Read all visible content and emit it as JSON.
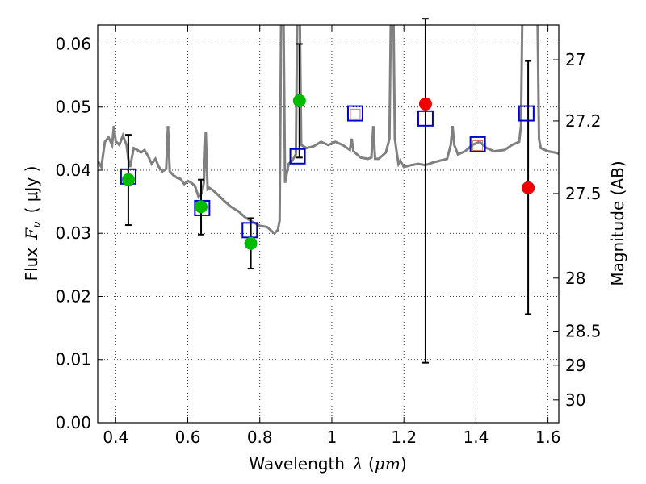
{
  "chart_data": {
    "type": "scatter",
    "xlabel_text": "Wavelength",
    "xlabel_symbol": "λ",
    "xlabel_unit_open": " (",
    "xlabel_unit": "μm",
    "xlabel_unit_close": ")",
    "ylabel_text": "Flux",
    "ylabel_symbol": "F",
    "ylabel_sub": "ν",
    "ylabel_unit": "( μJy )",
    "y2label": "Magnitude (AB)",
    "xlim": [
      0.35,
      1.63
    ],
    "ylim": [
      0.0,
      0.063
    ],
    "grid": true,
    "x_ticks": [
      0.4,
      0.6,
      0.8,
      1.0,
      1.2,
      1.4,
      1.6
    ],
    "x_tick_labels": [
      "0.4",
      "0.6",
      "0.8",
      "1",
      "1.2",
      "1.4",
      "1.6"
    ],
    "y_ticks": [
      0.0,
      0.01,
      0.02,
      0.03,
      0.04,
      0.05,
      0.06
    ],
    "y_tick_labels": [
      "0.00",
      "0.01",
      "0.02",
      "0.03",
      "0.04",
      "0.05",
      "0.06"
    ],
    "y2_ticks": [
      {
        "label": "27",
        "flux": 0.0575
      },
      {
        "label": "27.2",
        "flux": 0.0478
      },
      {
        "label": "27.5",
        "flux": 0.0363
      },
      {
        "label": "28",
        "flux": 0.0229
      },
      {
        "label": "28.5",
        "flux": 0.0145
      },
      {
        "label": "29",
        "flux": 0.0091
      },
      {
        "label": "30",
        "flux": 0.0036
      }
    ],
    "colors": {
      "model": "#808080",
      "model_flux": "#0000cc",
      "detection": "#00bb00",
      "non_detection": "#ee0000",
      "error_bar": "#000000",
      "inner_box": "#ee6666"
    },
    "series": [
      {
        "kind": "model-spectrum",
        "points": [
          [
            0.35,
            0.0415
          ],
          [
            0.36,
            0.0405
          ],
          [
            0.37,
            0.0445
          ],
          [
            0.38,
            0.0452
          ],
          [
            0.39,
            0.044
          ],
          [
            0.395,
            0.047
          ],
          [
            0.4,
            0.0446
          ],
          [
            0.41,
            0.044
          ],
          [
            0.42,
            0.0455
          ],
          [
            0.43,
            0.044
          ],
          [
            0.435,
            0.0418
          ],
          [
            0.44,
            0.0405
          ],
          [
            0.45,
            0.0435
          ],
          [
            0.46,
            0.0432
          ],
          [
            0.47,
            0.0428
          ],
          [
            0.48,
            0.0432
          ],
          [
            0.49,
            0.0422
          ],
          [
            0.5,
            0.041
          ],
          [
            0.51,
            0.0418
          ],
          [
            0.52,
            0.0405
          ],
          [
            0.53,
            0.0398
          ],
          [
            0.54,
            0.0402
          ],
          [
            0.545,
            0.047
          ],
          [
            0.55,
            0.0398
          ],
          [
            0.56,
            0.0392
          ],
          [
            0.57,
            0.0388
          ],
          [
            0.58,
            0.0386
          ],
          [
            0.59,
            0.0378
          ],
          [
            0.6,
            0.0383
          ],
          [
            0.61,
            0.038
          ],
          [
            0.62,
            0.0375
          ],
          [
            0.63,
            0.0358
          ],
          [
            0.64,
            0.0365
          ],
          [
            0.645,
            0.0382
          ],
          [
            0.65,
            0.046
          ],
          [
            0.655,
            0.037
          ],
          [
            0.66,
            0.0372
          ],
          [
            0.67,
            0.0368
          ],
          [
            0.68,
            0.0363
          ],
          [
            0.7,
            0.0352
          ],
          [
            0.72,
            0.0342
          ],
          [
            0.74,
            0.0335
          ],
          [
            0.76,
            0.0325
          ],
          [
            0.78,
            0.0318
          ],
          [
            0.8,
            0.0312
          ],
          [
            0.82,
            0.031
          ],
          [
            0.84,
            0.03
          ],
          [
            0.85,
            0.0305
          ],
          [
            0.855,
            0.032
          ],
          [
            0.86,
            0.07
          ],
          [
            0.865,
            0.07
          ],
          [
            0.87,
            0.038
          ],
          [
            0.88,
            0.041
          ],
          [
            0.89,
            0.0415
          ],
          [
            0.9,
            0.0425
          ],
          [
            0.905,
            0.07
          ],
          [
            0.91,
            0.07
          ],
          [
            0.915,
            0.044
          ],
          [
            0.93,
            0.0435
          ],
          [
            0.95,
            0.0438
          ],
          [
            0.97,
            0.0445
          ],
          [
            0.99,
            0.044
          ],
          [
            1.01,
            0.0445
          ],
          [
            1.03,
            0.044
          ],
          [
            1.05,
            0.0432
          ],
          [
            1.055,
            0.045
          ],
          [
            1.06,
            0.043
          ],
          [
            1.08,
            0.042
          ],
          [
            1.1,
            0.0418
          ],
          [
            1.11,
            0.042
          ],
          [
            1.115,
            0.047
          ],
          [
            1.12,
            0.0418
          ],
          [
            1.13,
            0.0418
          ],
          [
            1.15,
            0.0428
          ],
          [
            1.16,
            0.045
          ],
          [
            1.165,
            0.07
          ],
          [
            1.17,
            0.07
          ],
          [
            1.175,
            0.045
          ],
          [
            1.18,
            0.0428
          ],
          [
            1.185,
            0.041
          ],
          [
            1.19,
            0.0415
          ],
          [
            1.2,
            0.0405
          ],
          [
            1.22,
            0.0408
          ],
          [
            1.24,
            0.041
          ],
          [
            1.26,
            0.0408
          ],
          [
            1.28,
            0.0412
          ],
          [
            1.3,
            0.0415
          ],
          [
            1.32,
            0.0418
          ],
          [
            1.33,
            0.044
          ],
          [
            1.335,
            0.047
          ],
          [
            1.34,
            0.044
          ],
          [
            1.35,
            0.0425
          ],
          [
            1.37,
            0.043
          ],
          [
            1.39,
            0.044
          ],
          [
            1.41,
            0.0445
          ],
          [
            1.43,
            0.0435
          ],
          [
            1.45,
            0.043
          ],
          [
            1.48,
            0.0432
          ],
          [
            1.5,
            0.044
          ],
          [
            1.52,
            0.0445
          ],
          [
            1.525,
            0.047
          ],
          [
            1.53,
            0.07
          ],
          [
            1.55,
            0.07
          ],
          [
            1.56,
            0.07
          ],
          [
            1.57,
            0.07
          ],
          [
            1.575,
            0.045
          ],
          [
            1.58,
            0.0435
          ],
          [
            1.6,
            0.043
          ],
          [
            1.62,
            0.0428
          ],
          [
            1.63,
            0.0426
          ]
        ]
      },
      {
        "kind": "model-band-flux",
        "points": [
          {
            "x": 0.435,
            "y": 0.039
          },
          {
            "x": 0.64,
            "y": 0.034
          },
          {
            "x": 0.772,
            "y": 0.0305
          },
          {
            "x": 0.905,
            "y": 0.0422
          },
          {
            "x": 1.065,
            "y": 0.049
          },
          {
            "x": 1.26,
            "y": 0.0482
          },
          {
            "x": 1.405,
            "y": 0.0441
          },
          {
            "x": 1.54,
            "y": 0.049
          }
        ]
      },
      {
        "kind": "inner-marker",
        "points": [
          {
            "x": 1.065,
            "y": 0.0489
          },
          {
            "x": 1.405,
            "y": 0.0439
          }
        ]
      },
      {
        "kind": "detections",
        "points": [
          {
            "x": 0.435,
            "y": 0.0385,
            "err_lo": 0.0313,
            "err_hi": 0.0456
          },
          {
            "x": 0.637,
            "y": 0.0342,
            "err_lo": 0.0298,
            "err_hi": 0.0385
          },
          {
            "x": 0.775,
            "y": 0.0284,
            "err_lo": 0.0244,
            "err_hi": 0.0324
          },
          {
            "x": 0.91,
            "y": 0.051,
            "err_lo": 0.042,
            "err_hi": 0.06
          }
        ]
      },
      {
        "kind": "non-detections",
        "points": [
          {
            "x": 1.26,
            "y": 0.0505,
            "err_lo": 0.0095,
            "err_hi": 0.064
          },
          {
            "x": 1.545,
            "y": 0.0372,
            "err_lo": 0.0172,
            "err_hi": 0.0573
          }
        ]
      }
    ]
  }
}
